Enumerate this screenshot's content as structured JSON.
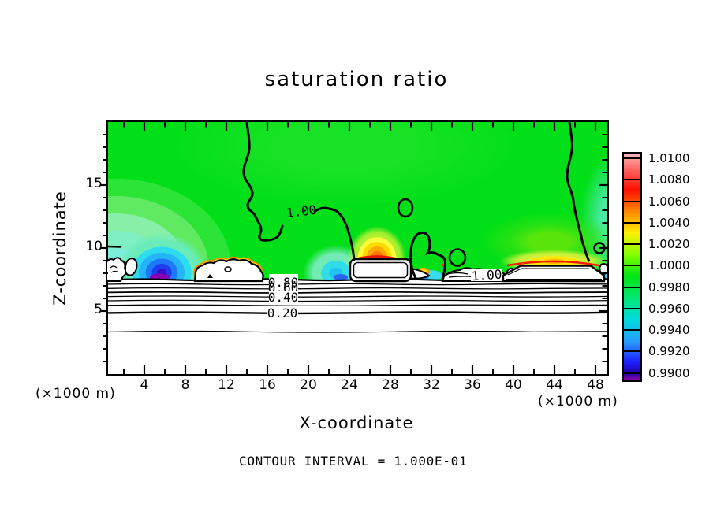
{
  "title": "saturation ratio",
  "y_axis": {
    "label": "Z-coordinate",
    "ticks": [
      "15",
      "10",
      "5"
    ]
  },
  "x_axis": {
    "label": "X-coordinate",
    "ticks": [
      "4",
      "8",
      "12",
      "16",
      "20",
      "24",
      "28",
      "32",
      "36",
      "40",
      "44",
      "48"
    ],
    "unit_left": "(×1000 m)",
    "unit_right": "(×1000 m)"
  },
  "colorbar": {
    "labels": [
      "1.0100",
      "1.0080",
      "1.0060",
      "1.0040",
      "1.0020",
      "1.0000",
      "0.9980",
      "0.9960",
      "0.9940",
      "0.9920",
      "0.9900"
    ]
  },
  "contour_labels": {
    "c100a": "1.00",
    "c100b": "1.00",
    "c080": "0.80",
    "c060": "0.60",
    "c040": "0.40",
    "c020": "0.20"
  },
  "footer": "CONTOUR INTERVAL = 1.000E-01",
  "chart_data": {
    "type": "heatmap",
    "subtype": "filled-contour-plot",
    "title": "saturation ratio",
    "xlabel": "X-coordinate",
    "ylabel": "Z-coordinate",
    "axis_units": "(×1000 m)",
    "xlim": [
      0,
      50
    ],
    "ylim": [
      0,
      20
    ],
    "x_major_ticks": [
      4,
      8,
      12,
      16,
      20,
      24,
      28,
      32,
      36,
      40,
      44,
      48
    ],
    "y_major_ticks": [
      5,
      10,
      15
    ],
    "contour_interval": 0.1,
    "contour_interval_label": "CONTOUR INTERVAL = 1.000E-01",
    "line_contour_levels_labeled": [
      0.2,
      0.4,
      0.6,
      0.8,
      1.0
    ],
    "colorbar_tick_labels": [
      "1.0100",
      "1.0080",
      "1.0060",
      "1.0040",
      "1.0020",
      "1.0000",
      "0.9980",
      "0.9960",
      "0.9940",
      "0.9920",
      "0.9900"
    ],
    "fill_levels": [
      0.99,
      0.992,
      0.994,
      0.996,
      0.998,
      1.0,
      1.002,
      1.004,
      1.006,
      1.008,
      1.01
    ],
    "fill_colors_top_to_bottom": [
      "#FF6464",
      "#FF0F00",
      "#FF8C00",
      "#FFF000",
      "#7DFF00",
      "#00E614",
      "#00E878",
      "#00DCDC",
      "#289CFF",
      "#1E1EFF"
    ],
    "colorbar_above_color": "#FFB4CD",
    "colorbar_below_color": "#2800A0",
    "features": [
      "nearly uniform green field (ratio 1.000-1.002) over most of the domain above z ~ 8",
      "thick labeled 1.00 contour descending from the top boundary near x = 13.5 and x = 45",
      "stratified near-surface layer below z ~ 7.5 with horizontal contour lines labeled 0.80, 0.60, 0.40, 0.20 decreasing toward the ground",
      "subsaturated blue plumes (~0.992-0.994) near x = 5.5 and x = 22 at z ~ 8-10",
      "supersaturated orange-red maxima (~1.004-1.008) just above white obstacle outlines near x = 24-30 and x = 39-48",
      "white outlined obstacle/cloud shapes along z ~ 7.5-9.5 at x ~ 0-3, 9-15, 24-30, 33-39, 39-48"
    ]
  }
}
